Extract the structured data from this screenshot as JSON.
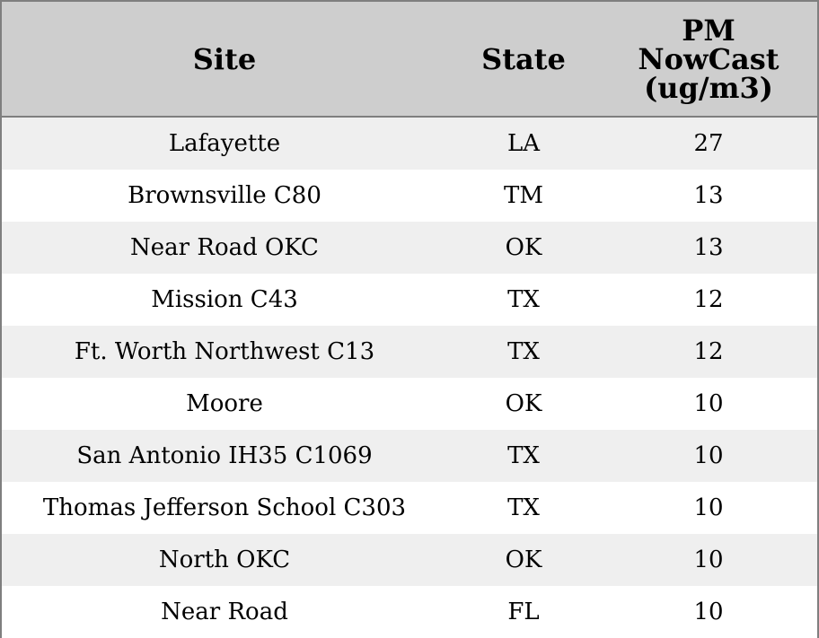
{
  "chart_data": {
    "type": "table",
    "columns": [
      "Site",
      "State",
      "PM NowCast (ug/m3)"
    ],
    "header_lines": {
      "site": "Site",
      "state": "State",
      "pm_line1": "PM",
      "pm_line2": "NowCast",
      "pm_line3": "(ug/m3)"
    },
    "rows": [
      {
        "site": "Lafayette",
        "state": "LA",
        "pm": "27"
      },
      {
        "site": "Brownsville C80",
        "state": "TM",
        "pm": "13"
      },
      {
        "site": "Near Road OKC",
        "state": "OK",
        "pm": "13"
      },
      {
        "site": "Mission C43",
        "state": "TX",
        "pm": "12"
      },
      {
        "site": "Ft. Worth Northwest C13",
        "state": "TX",
        "pm": "12"
      },
      {
        "site": "Moore",
        "state": "OK",
        "pm": "10"
      },
      {
        "site": "San Antonio IH35 C1069",
        "state": "TX",
        "pm": "10"
      },
      {
        "site": "Thomas Jefferson School C303",
        "state": "TX",
        "pm": "10"
      },
      {
        "site": "North OKC",
        "state": "OK",
        "pm": "10"
      },
      {
        "site": "Near Road",
        "state": "FL",
        "pm": "10"
      }
    ],
    "colors": {
      "header_bg": "#cecece",
      "stripe_bg": "#efefef",
      "row_bg": "#ffffff",
      "border": "#7f7f7f"
    }
  }
}
